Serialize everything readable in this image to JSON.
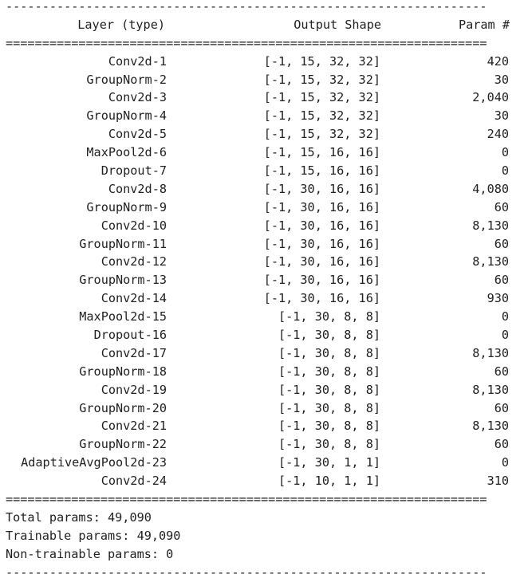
{
  "rules": {
    "dash": "------------------------------------------------------------------",
    "equal": "=================================================================="
  },
  "header": {
    "layer": "Layer (type)",
    "shape": "Output Shape",
    "param": "Param #"
  },
  "layers": [
    {
      "name": "Conv2d-1",
      "shape": "[-1, 15, 32, 32]",
      "params": "420"
    },
    {
      "name": "GroupNorm-2",
      "shape": "[-1, 15, 32, 32]",
      "params": "30"
    },
    {
      "name": "Conv2d-3",
      "shape": "[-1, 15, 32, 32]",
      "params": "2,040"
    },
    {
      "name": "GroupNorm-4",
      "shape": "[-1, 15, 32, 32]",
      "params": "30"
    },
    {
      "name": "Conv2d-5",
      "shape": "[-1, 15, 32, 32]",
      "params": "240"
    },
    {
      "name": "MaxPool2d-6",
      "shape": "[-1, 15, 16, 16]",
      "params": "0"
    },
    {
      "name": "Dropout-7",
      "shape": "[-1, 15, 16, 16]",
      "params": "0"
    },
    {
      "name": "Conv2d-8",
      "shape": "[-1, 30, 16, 16]",
      "params": "4,080"
    },
    {
      "name": "GroupNorm-9",
      "shape": "[-1, 30, 16, 16]",
      "params": "60"
    },
    {
      "name": "Conv2d-10",
      "shape": "[-1, 30, 16, 16]",
      "params": "8,130"
    },
    {
      "name": "GroupNorm-11",
      "shape": "[-1, 30, 16, 16]",
      "params": "60"
    },
    {
      "name": "Conv2d-12",
      "shape": "[-1, 30, 16, 16]",
      "params": "8,130"
    },
    {
      "name": "GroupNorm-13",
      "shape": "[-1, 30, 16, 16]",
      "params": "60"
    },
    {
      "name": "Conv2d-14",
      "shape": "[-1, 30, 16, 16]",
      "params": "930"
    },
    {
      "name": "MaxPool2d-15",
      "shape": "[-1, 30, 8, 8]",
      "params": "0"
    },
    {
      "name": "Dropout-16",
      "shape": "[-1, 30, 8, 8]",
      "params": "0"
    },
    {
      "name": "Conv2d-17",
      "shape": "[-1, 30, 8, 8]",
      "params": "8,130"
    },
    {
      "name": "GroupNorm-18",
      "shape": "[-1, 30, 8, 8]",
      "params": "60"
    },
    {
      "name": "Conv2d-19",
      "shape": "[-1, 30, 8, 8]",
      "params": "8,130"
    },
    {
      "name": "GroupNorm-20",
      "shape": "[-1, 30, 8, 8]",
      "params": "60"
    },
    {
      "name": "Conv2d-21",
      "shape": "[-1, 30, 8, 8]",
      "params": "8,130"
    },
    {
      "name": "GroupNorm-22",
      "shape": "[-1, 30, 8, 8]",
      "params": "60"
    },
    {
      "name": "AdaptiveAvgPool2d-23",
      "shape": "[-1, 30, 1, 1]",
      "params": "0"
    },
    {
      "name": "Conv2d-24",
      "shape": "[-1, 10, 1, 1]",
      "params": "310"
    }
  ],
  "totals": {
    "total": "Total params: 49,090",
    "trainable": "Trainable params: 49,090",
    "non_trainable": "Non-trainable params: 0"
  }
}
